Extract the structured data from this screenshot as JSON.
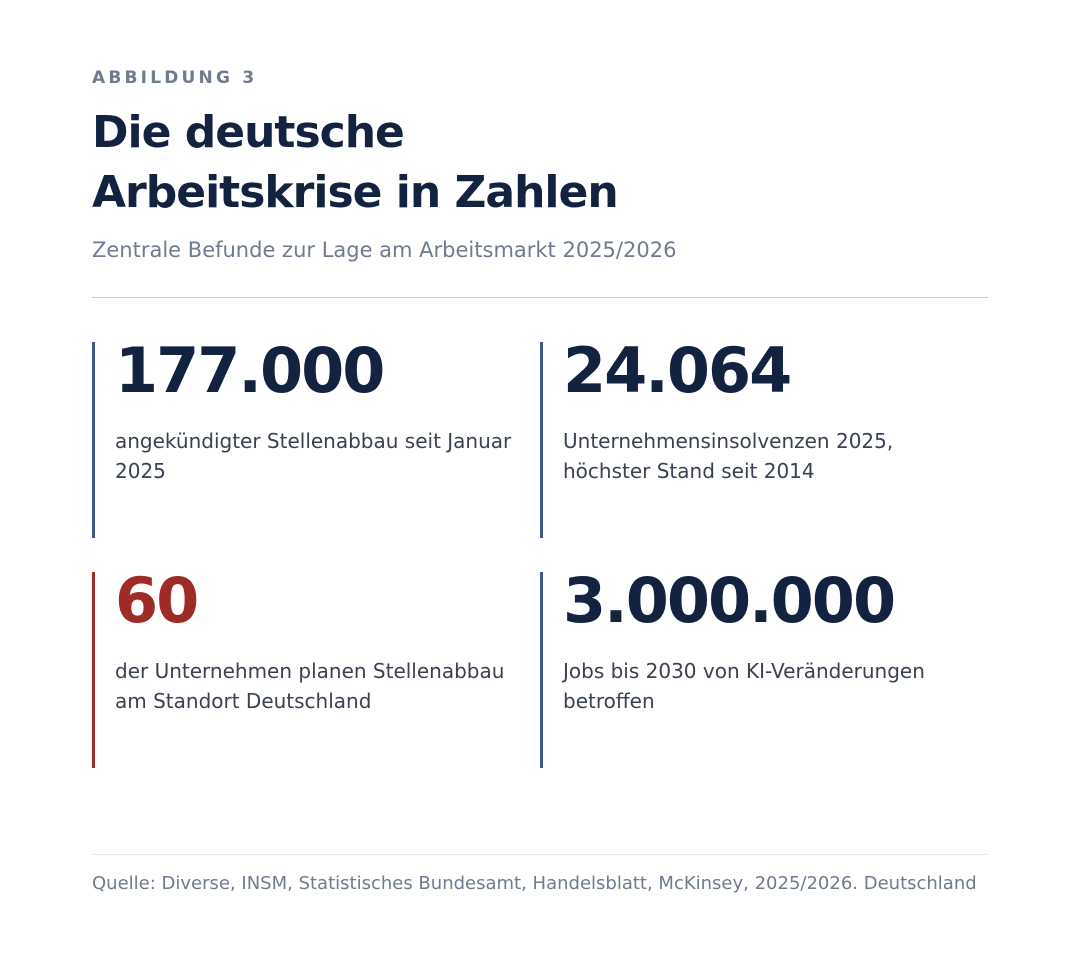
{
  "header": {
    "eyebrow": "ABBILDUNG 3",
    "title_line1": "Die deutsche",
    "title_line2": "Arbeitskrise in Zahlen",
    "subtitle": "Zentrale Befunde zur Lage am Arbeitsmarkt 2025/2026"
  },
  "stats": [
    {
      "value": "177.000",
      "label": "angekündigter Stellenabbau seit Januar 2025"
    },
    {
      "value": "24.064",
      "label": "Unternehmensinsolvenzen 2025, höchster Stand seit 2014"
    },
    {
      "value": "60",
      "label": "der Unternehmen planen Stellenabbau am Standort Deutschland"
    },
    {
      "value": "3.000.000",
      "label": "Jobs bis 2030 von KI-Veränderungen betroffen"
    }
  ],
  "footer": {
    "source": "Quelle: Diverse, INSM, Statistisches Bundesamt, Handelsblatt, McKinsey, 2025/2026. Deutschland"
  },
  "colors": {
    "primary_text": "#13223f",
    "muted_text": "#6f7b8e",
    "accent_blue": "#3a5a8c",
    "accent_red": "#9e2b25"
  }
}
